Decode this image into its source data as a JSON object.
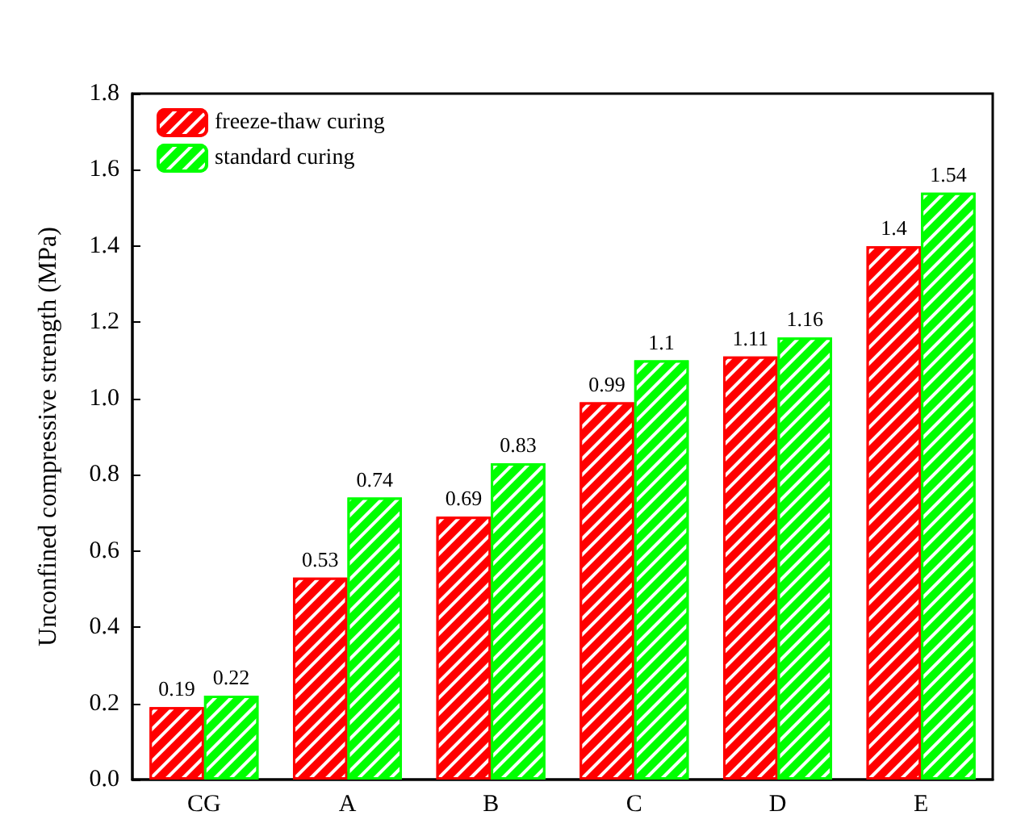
{
  "chart_data": {
    "type": "bar",
    "ylabel": "Unconfined compressive strength (MPa)",
    "categories": [
      "CG",
      "A",
      "B",
      "C",
      "D",
      "E"
    ],
    "series": [
      {
        "name": "freeze-thaw curing",
        "color": "#ff0000",
        "values": [
          0.19,
          0.53,
          0.69,
          0.99,
          1.11,
          1.4
        ]
      },
      {
        "name": "standard curing",
        "color": "#00ff00",
        "values": [
          0.22,
          0.74,
          0.83,
          1.1,
          1.16,
          1.54
        ]
      }
    ],
    "ylim": [
      0,
      1.8
    ],
    "yticks": [
      {
        "value": 0,
        "label": "0.0"
      },
      {
        "value": 0.2,
        "label": "0.2"
      },
      {
        "value": 0.4,
        "label": "0.4"
      },
      {
        "value": 0.6,
        "label": "0.6"
      },
      {
        "value": 0.8,
        "label": "0.8"
      },
      {
        "value": 1,
        "label": "1.0"
      },
      {
        "value": 1.2,
        "label": "1.2"
      },
      {
        "value": 1.4,
        "label": "1.4"
      },
      {
        "value": 1.6,
        "label": "1.6"
      },
      {
        "value": 1.8,
        "label": "1.8"
      }
    ],
    "data_labels": true,
    "legend": "top left",
    "grid": false
  }
}
